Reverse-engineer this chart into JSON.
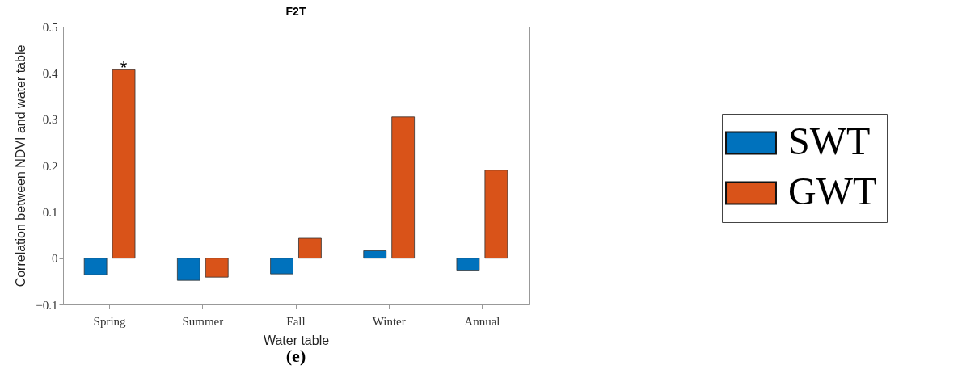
{
  "chart_data": {
    "type": "bar",
    "title": "F2T",
    "xlabel": "Water table",
    "ylabel": "Correlation between NDVI and water table",
    "categories": [
      "Spring",
      "Summer",
      "Fall",
      "Winter",
      "Annual"
    ],
    "series": [
      {
        "name": "SWT",
        "color": "#0072bd",
        "values": [
          -0.036,
          -0.048,
          -0.034,
          0.016,
          -0.026
        ]
      },
      {
        "name": "GWT",
        "color": "#d95319",
        "values": [
          0.407,
          -0.041,
          0.043,
          0.305,
          0.19
        ]
      }
    ],
    "ylim": [
      -0.1,
      0.5
    ],
    "yticks": [
      -0.1,
      0,
      0.1,
      0.2,
      0.3,
      0.4,
      0.5
    ],
    "grid": false,
    "legend": "right",
    "annotations": [
      {
        "text": "*",
        "x": "Spring",
        "y": 0.407
      },
      "(e)"
    ]
  }
}
